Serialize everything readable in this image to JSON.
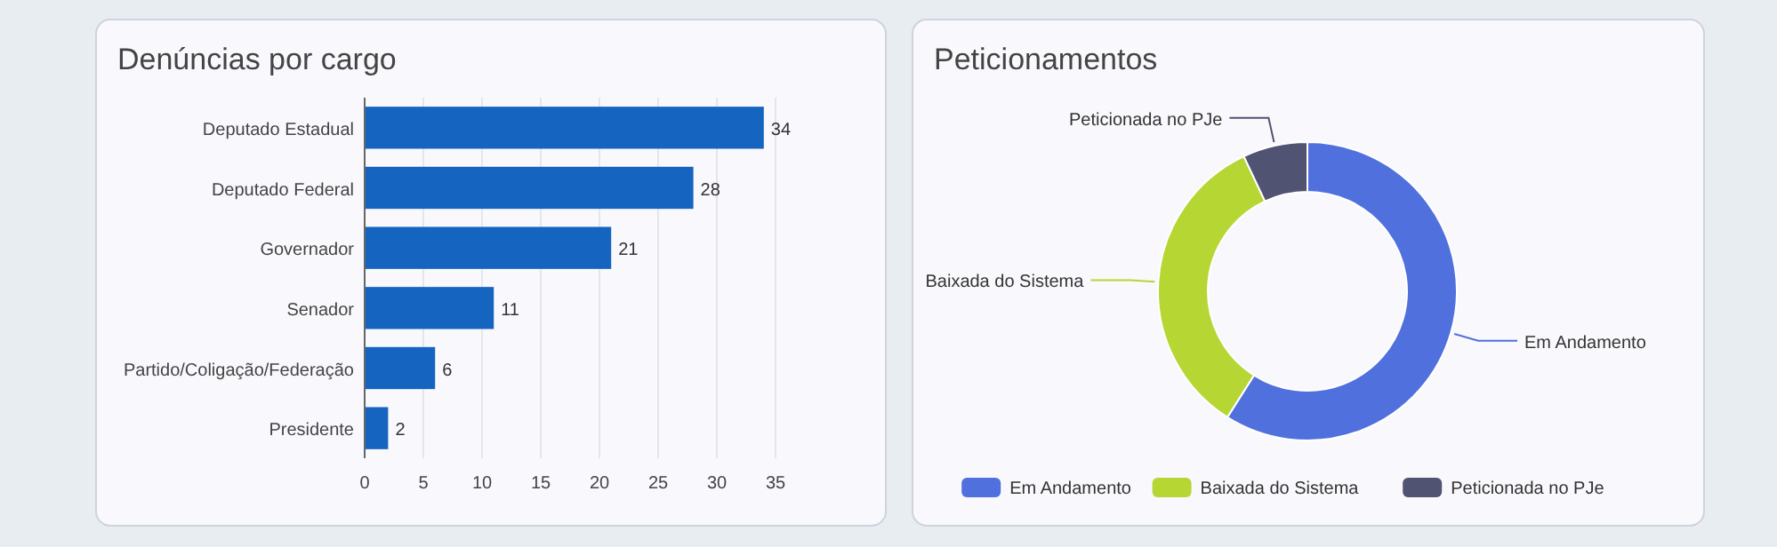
{
  "chart_data": [
    {
      "type": "bar",
      "title": "Denúncias por cargo",
      "orientation": "horizontal",
      "categories": [
        "Deputado Estadual",
        "Deputado Federal",
        "Governador",
        "Senador",
        "Partido/Coligação/Federação",
        "Presidente"
      ],
      "values": [
        34,
        28,
        21,
        11,
        6,
        2
      ],
      "color": "#1565c0",
      "xlim": [
        0,
        35
      ],
      "xticks": [
        0,
        5,
        10,
        15,
        20,
        25,
        30,
        35
      ],
      "grid": "x",
      "data_labels": true
    },
    {
      "type": "donut",
      "title": "Peticionamentos",
      "categories": [
        "Em Andamento",
        "Baixada do Sistema",
        "Peticionada no PJe"
      ],
      "values": [
        59,
        34,
        7
      ],
      "colors": [
        "#5070dd",
        "#b6d634",
        "#505372"
      ],
      "legend": "bottom"
    }
  ]
}
